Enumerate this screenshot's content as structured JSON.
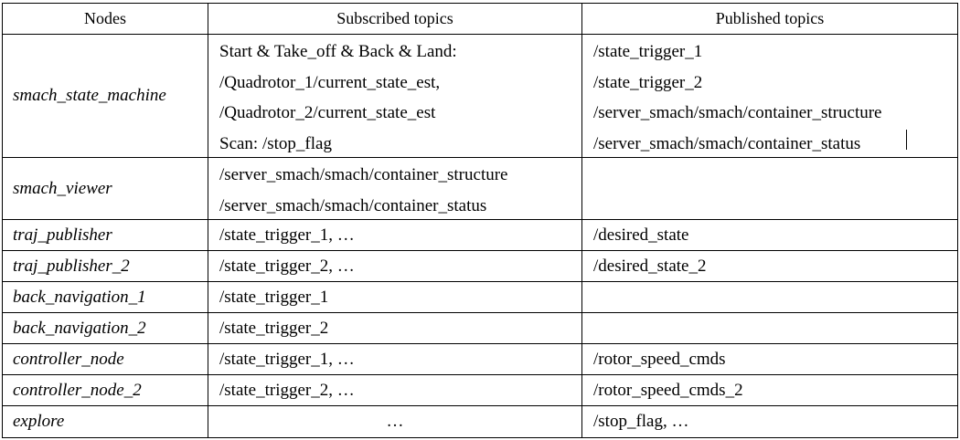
{
  "header": {
    "nodes": "Nodes",
    "subscribed": "Subscribed topics",
    "published": "Published topics"
  },
  "rows": [
    {
      "node": "smach_state_machine",
      "subscribed": [
        "Start & Take_off & Back & Land:",
        "/Quadrotor_1/current_state_est,",
        "/Quadrotor_2/current_state_est",
        "Scan: /stop_flag"
      ],
      "published": [
        "/state_trigger_1",
        "/state_trigger_2",
        "/server_smach/smach/container_structure",
        "/server_smach/smach/container_status"
      ]
    },
    {
      "node": "smach_viewer",
      "subscribed": [
        "/server_smach/smach/container_structure",
        "/server_smach/smach/container_status"
      ],
      "published": []
    },
    {
      "node": "traj_publisher",
      "subscribed": [
        "/state_trigger_1, …"
      ],
      "published": [
        "/desired_state"
      ]
    },
    {
      "node": "traj_publisher_2",
      "subscribed": [
        "/state_trigger_2, …"
      ],
      "published": [
        "/desired_state_2"
      ]
    },
    {
      "node": "back_navigation_1",
      "subscribed": [
        "/state_trigger_1"
      ],
      "published": []
    },
    {
      "node": "back_navigation_2",
      "subscribed": [
        "/state_trigger_2"
      ],
      "published": []
    },
    {
      "node": "controller_node",
      "subscribed": [
        "/state_trigger_1, …"
      ],
      "published": [
        "/rotor_speed_cmds"
      ]
    },
    {
      "node": "controller_node_2",
      "subscribed": [
        "/state_trigger_2, …"
      ],
      "published": [
        "/rotor_speed_cmds_2"
      ]
    },
    {
      "node": "explore",
      "subscribed": [
        "…"
      ],
      "published": [
        "/stop_flag, …"
      ]
    }
  ]
}
